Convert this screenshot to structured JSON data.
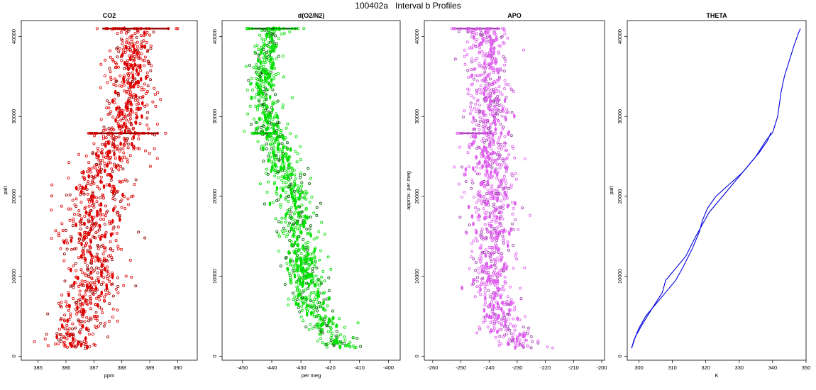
{
  "page": {
    "title": "100402a   Interval b Profiles"
  },
  "chart_data": [
    {
      "type": "scatter",
      "title": "CO2",
      "xlabel": "ppm",
      "ylabel": "palt",
      "xlim": [
        384.4,
        390.7
      ],
      "ylim": [
        -500,
        42000
      ],
      "xticks": [
        385,
        386,
        387,
        388,
        389,
        390
      ],
      "yticks": [
        0,
        10000,
        20000,
        30000,
        40000
      ],
      "color": "#e00000",
      "plateaus": [
        {
          "y": 41000,
          "x_range": [
            387.3,
            389.7
          ]
        },
        {
          "y": 27900,
          "x_range": [
            386.8,
            389.3
          ]
        }
      ],
      "profile": [
        [
          1000,
          386.2,
          0.5
        ],
        [
          5000,
          386.6,
          0.55
        ],
        [
          10000,
          387.0,
          0.55
        ],
        [
          15000,
          386.9,
          0.55
        ],
        [
          20000,
          387.1,
          0.6
        ],
        [
          25000,
          387.7,
          0.5
        ],
        [
          28000,
          388.0,
          0.45
        ],
        [
          32000,
          388.3,
          0.4
        ],
        [
          36000,
          388.4,
          0.4
        ],
        [
          41000,
          388.5,
          0.4
        ]
      ]
    },
    {
      "type": "scatter",
      "title": "d(O2/N2)",
      "xlabel": "per meg",
      "ylabel": "",
      "xlim": [
        -457,
        -396
      ],
      "ylim": [
        -500,
        42000
      ],
      "xticks": [
        -450,
        -440,
        -430,
        -420,
        -410,
        -400
      ],
      "yticks": [
        0,
        10000,
        20000,
        30000,
        40000
      ],
      "color": "#00e000",
      "plateaus": [
        {
          "y": 41000,
          "x_range": [
            -448,
            -431
          ]
        },
        {
          "y": 27900,
          "x_range": [
            -446,
            -440
          ]
        }
      ],
      "profile": [
        [
          1000,
          -416,
          3
        ],
        [
          3000,
          -421,
          3
        ],
        [
          6000,
          -426,
          3.5
        ],
        [
          10000,
          -429,
          3.5
        ],
        [
          15000,
          -431,
          3.5
        ],
        [
          20000,
          -432,
          3.5
        ],
        [
          24000,
          -436,
          3.5
        ],
        [
          28000,
          -441,
          3
        ],
        [
          33000,
          -443,
          2.5
        ],
        [
          38000,
          -442,
          2.5
        ],
        [
          41000,
          -440,
          2.5
        ]
      ]
    },
    {
      "type": "scatter",
      "title": "APO",
      "xlabel": "",
      "ylabel": "approx. per meg",
      "xlim": [
        -263,
        -199
      ],
      "ylim": [
        -500,
        42000
      ],
      "xticks": [
        -260,
        -250,
        -240,
        -230,
        -220,
        -210,
        -200
      ],
      "yticks": [
        0,
        10000,
        20000,
        30000,
        40000
      ],
      "color": "#e060f0",
      "plateaus": [
        {
          "y": 41000,
          "x_range": [
            -252,
            -236
          ]
        },
        {
          "y": 27900,
          "x_range": [
            -251,
            -239
          ]
        }
      ],
      "profile": [
        [
          1000,
          -228,
          4
        ],
        [
          3000,
          -233,
          4
        ],
        [
          6000,
          -238,
          4
        ],
        [
          10000,
          -239,
          4
        ],
        [
          20000,
          -239,
          4.5
        ],
        [
          30000,
          -240,
          4
        ],
        [
          41000,
          -241,
          4
        ]
      ]
    },
    {
      "type": "line",
      "title": "THETA",
      "xlabel": "K",
      "ylabel": "palt",
      "xlim": [
        296.5,
        350
      ],
      "ylim": [
        -500,
        42000
      ],
      "xticks": [
        300,
        310,
        320,
        330,
        340,
        350
      ],
      "yticks": [
        0,
        10000,
        20000,
        30000,
        40000
      ],
      "color": "#0000e0",
      "series": [
        {
          "x": [
            297.8,
            298.5,
            300,
            302,
            305,
            308,
            311,
            313,
            316,
            318,
            319,
            320.5,
            323,
            327,
            331,
            335,
            338,
            340,
            341.5,
            342.5,
            343.5,
            345,
            346.5,
            347.8,
            348.3
          ],
          "y": [
            1000,
            2000,
            3500,
            5000,
            6500,
            8000,
            9500,
            11000,
            13500,
            15500,
            17000,
            18500,
            20000,
            21500,
            23000,
            25000,
            27000,
            28000,
            30000,
            33000,
            35000,
            37000,
            39000,
            40500,
            41000
          ]
        },
        {
          "x": [
            297.8,
            299,
            301,
            304,
            307,
            308,
            310,
            314,
            317,
            319,
            321,
            324,
            328,
            332,
            336,
            338.5,
            339.5
          ],
          "y": [
            1000,
            2500,
            4000,
            6000,
            8000,
            9500,
            10500,
            12500,
            15000,
            16500,
            18000,
            19500,
            21500,
            23500,
            25500,
            27000,
            28000
          ]
        }
      ]
    }
  ]
}
